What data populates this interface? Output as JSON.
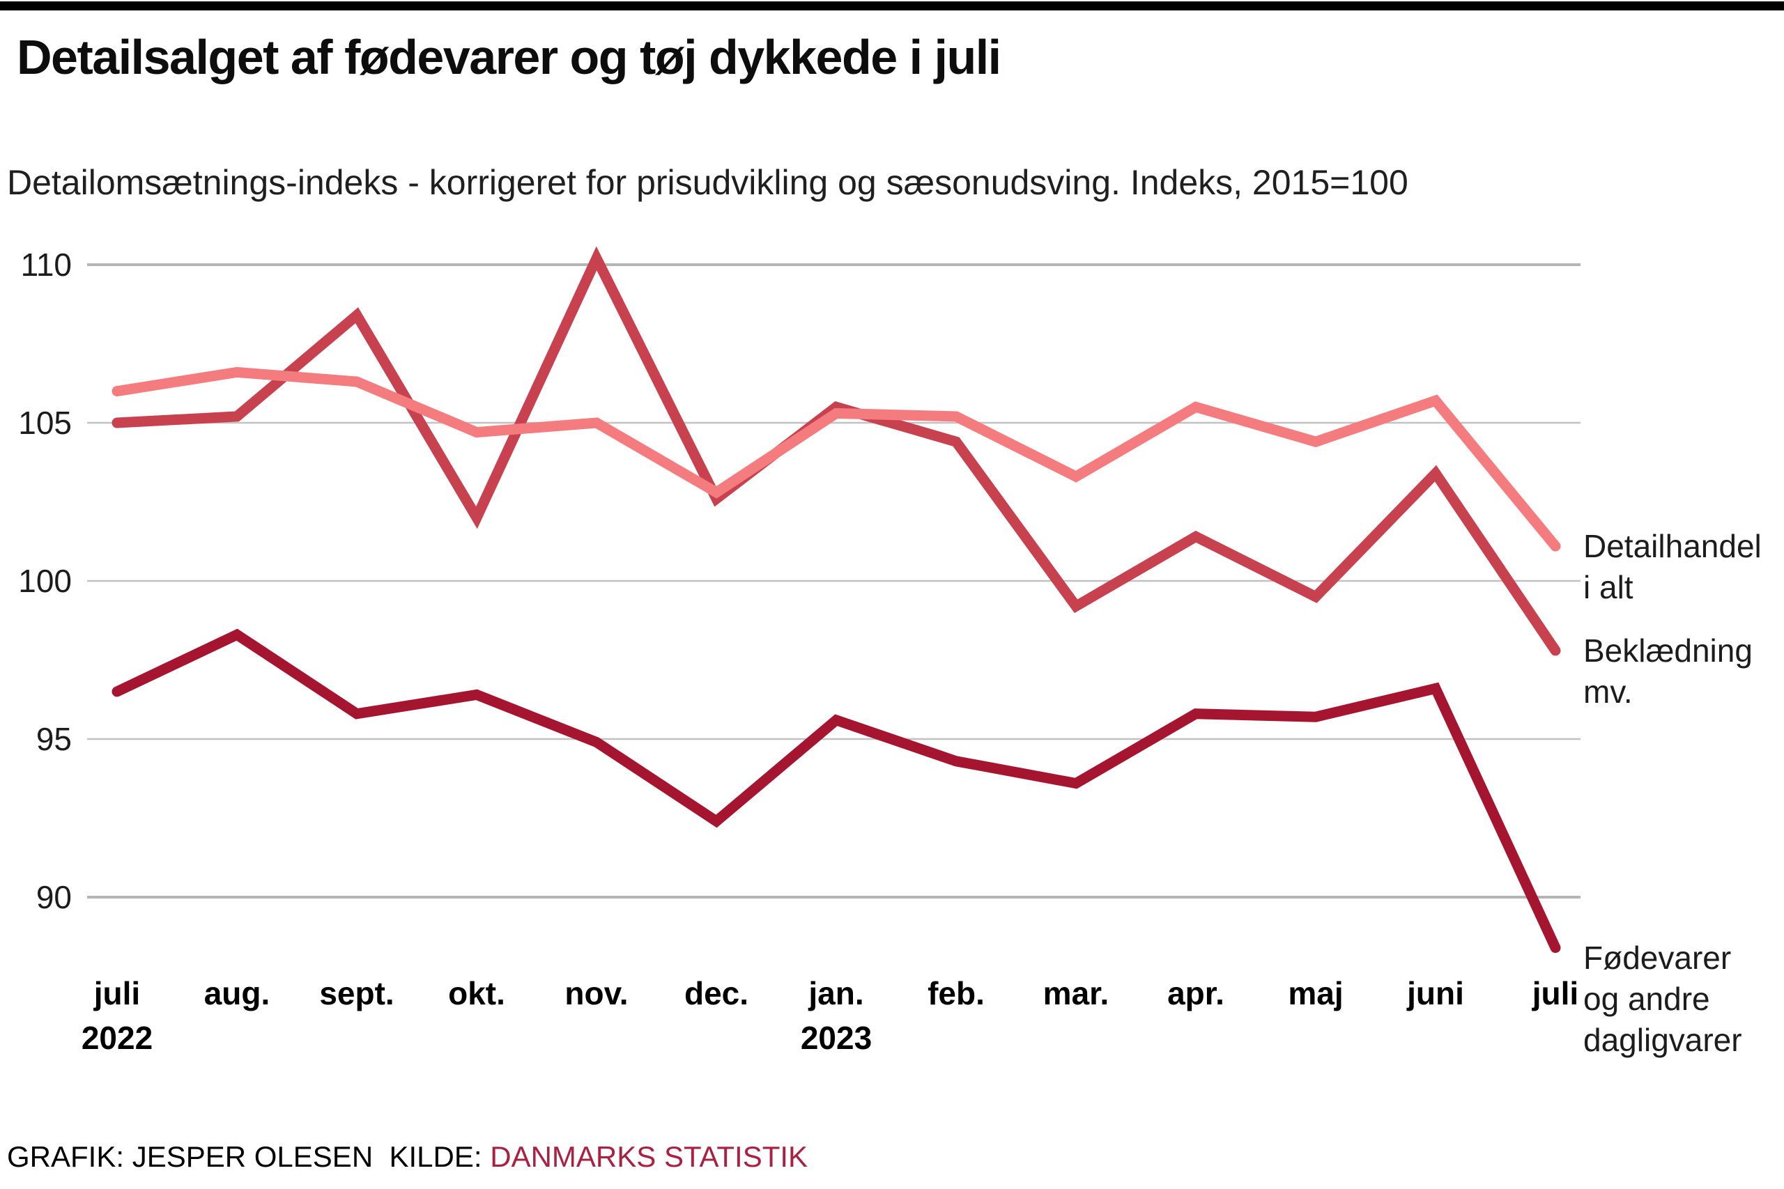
{
  "header": {
    "title": "Detailsalget af fødevarer og tøj dykkede i juli",
    "subtitle": "Detailomsætnings-indeks - korrigeret for prisudvikling og sæsonudsving. Indeks, 2015=100"
  },
  "footer": {
    "credit": "GRAFIK: JESPER OLESEN",
    "source_label": "KILDE:",
    "source_name": "DANMARKS STATISTIK",
    "source_color": "#a92040"
  },
  "colors": {
    "accent_bar": "#000000",
    "gridline": "#c2c2c2",
    "gridline_outer": "#b5b5b5"
  },
  "chart_data": {
    "type": "line",
    "title": "Detailsalget af fødevarer og tøj dykkede i juli",
    "subtitle": "Detailomsætnings-indeks - korrigeret for prisudvikling og sæsonudsving. Indeks, 2015=100",
    "x_tick_labels": [
      "juli",
      "aug.",
      "sept.",
      "okt.",
      "nov.",
      "dec.",
      "jan.",
      "feb.",
      "mar.",
      "apr.",
      "maj",
      "juni",
      "juli"
    ],
    "x_year_labels": [
      {
        "index": 0,
        "text": "2022"
      },
      {
        "index": 6,
        "text": "2023"
      }
    ],
    "y_ticks": [
      90,
      95,
      100,
      105,
      110
    ],
    "ylim": [
      88,
      111
    ],
    "grid": "horizontal-only",
    "legend_position": "right-edge-line-labels",
    "series": [
      {
        "name": "Detailhandel i alt",
        "label_lines": [
          "Detailhandel",
          "i alt"
        ],
        "color": "#f57c7e",
        "values": [
          106.0,
          106.6,
          106.3,
          104.7,
          105.0,
          102.8,
          105.3,
          105.2,
          103.3,
          105.5,
          104.4,
          105.7,
          101.1
        ]
      },
      {
        "name": "Beklædning mv.",
        "label_lines": [
          "Beklædning",
          "mv."
        ],
        "color": "#c8414f",
        "values": [
          105.0,
          105.2,
          108.4,
          102.0,
          110.2,
          102.6,
          105.5,
          104.4,
          99.2,
          101.4,
          99.5,
          103.4,
          97.8
        ]
      },
      {
        "name": "Fødevarer og andre dagligvarer",
        "label_lines": [
          "Fødevarer",
          "og andre",
          "dagligvarer"
        ],
        "color": "#a6152f",
        "values": [
          96.5,
          98.3,
          95.8,
          96.4,
          94.9,
          92.4,
          95.6,
          94.3,
          93.6,
          95.8,
          95.7,
          96.6,
          88.4
        ]
      }
    ]
  }
}
